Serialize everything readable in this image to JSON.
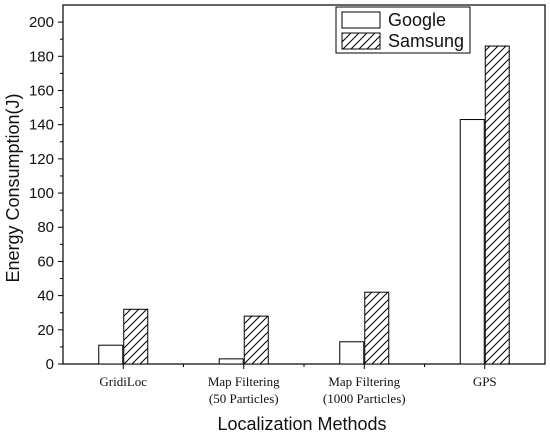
{
  "chart_data": {
    "type": "bar",
    "categories": [
      [
        "GridiLoc"
      ],
      [
        "Map Filtering",
        "(50 Particles)"
      ],
      [
        "Map Filtering",
        "(1000 Particles)"
      ],
      [
        "GPS"
      ]
    ],
    "series": [
      {
        "name": "Google",
        "values": [
          11,
          3,
          13,
          143
        ],
        "pattern": "none"
      },
      {
        "name": "Samsung",
        "values": [
          32,
          28,
          42,
          186
        ],
        "pattern": "diagonal-hatch"
      }
    ],
    "title": "",
    "xlabel": "Localization Methods",
    "ylabel": "Energy Consumption(J)",
    "ylim": [
      0,
      210
    ],
    "yticks": [
      0,
      20,
      40,
      60,
      80,
      100,
      120,
      140,
      160,
      180,
      200
    ],
    "grid": false,
    "legend_position": "top-right",
    "colors": {
      "bar_fill": "#ffffff",
      "stroke": "#000000"
    }
  }
}
